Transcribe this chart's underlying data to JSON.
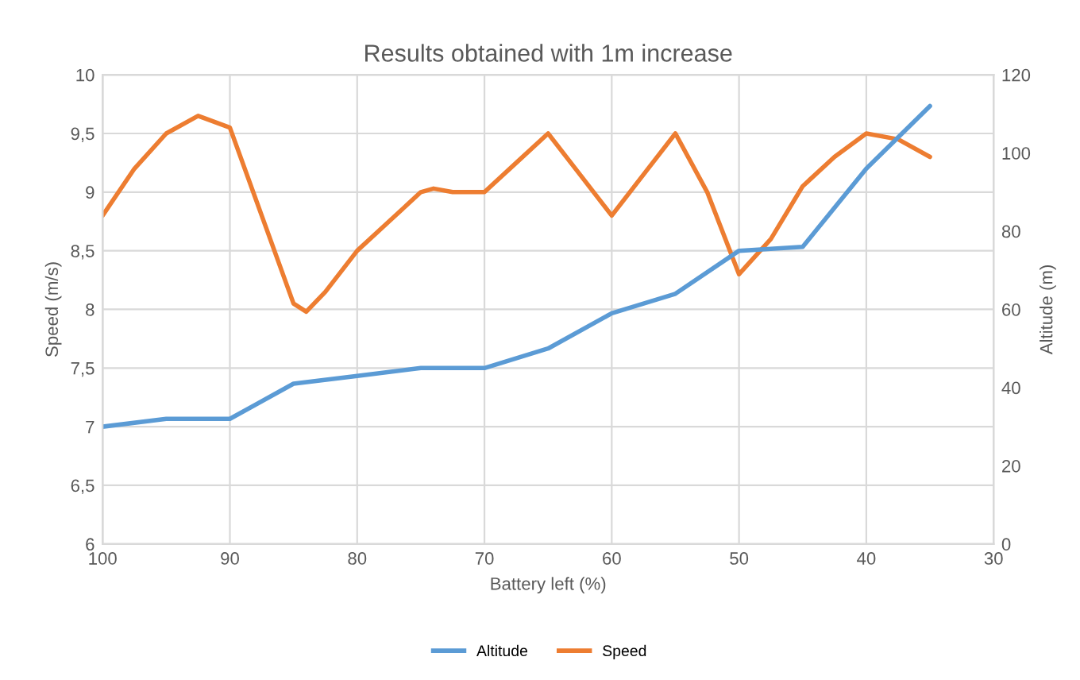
{
  "chart_data": {
    "type": "line",
    "title": "Results obtained with 1m increase",
    "xlabel": "Battery left (%)",
    "ylabel": "Speed (m/s)",
    "y2label": "Altitude (m)",
    "x": [
      100,
      95,
      90,
      85,
      80,
      75,
      70,
      65,
      60,
      55,
      50,
      45,
      40,
      35
    ],
    "series": [
      {
        "name": "Altitude",
        "color": "#5b9bd5",
        "axis": "y2",
        "values": [
          30,
          32,
          32,
          41,
          43,
          45,
          45,
          50,
          59,
          64,
          75,
          76,
          96,
          112
        ]
      },
      {
        "name": "Speed",
        "color": "#ed7d31",
        "x": [
          100,
          97.5,
          95,
          92.5,
          90,
          87.5,
          85,
          84,
          82.5,
          80,
          77.5,
          75,
          74,
          72.5,
          70,
          67.5,
          65,
          62.5,
          60,
          57.5,
          55,
          52.5,
          50,
          47.5,
          45,
          42.5,
          40,
          37.5,
          35
        ],
        "values": [
          8.8,
          9.2,
          9.5,
          9.65,
          9.55,
          8.8,
          8.05,
          7.98,
          8.15,
          8.5,
          8.75,
          9.0,
          9.03,
          9.0,
          9.0,
          9.25,
          9.5,
          9.15,
          8.8,
          9.15,
          9.5,
          9.0,
          8.3,
          8.6,
          9.05,
          9.3,
          9.5,
          9.45,
          9.3
        ]
      }
    ],
    "xlim": [
      100,
      30
    ],
    "xticks": [
      100,
      90,
      80,
      70,
      60,
      50,
      40,
      30
    ],
    "ylim": [
      6,
      10
    ],
    "yticks": [
      {
        "value": 6,
        "label": "6"
      },
      {
        "value": 6.5,
        "label": "6,5"
      },
      {
        "value": 7,
        "label": "7"
      },
      {
        "value": 7.5,
        "label": "7,5"
      },
      {
        "value": 8,
        "label": "8"
      },
      {
        "value": 8.5,
        "label": "8,5"
      },
      {
        "value": 9,
        "label": "9"
      },
      {
        "value": 9.5,
        "label": "9,5"
      },
      {
        "value": 10,
        "label": "10"
      }
    ],
    "y2lim": [
      0,
      120
    ],
    "y2ticks": [
      0,
      20,
      40,
      60,
      80,
      100,
      120
    ],
    "grid": true,
    "legend": "bottom",
    "line_style": "solid",
    "marker": "none"
  }
}
